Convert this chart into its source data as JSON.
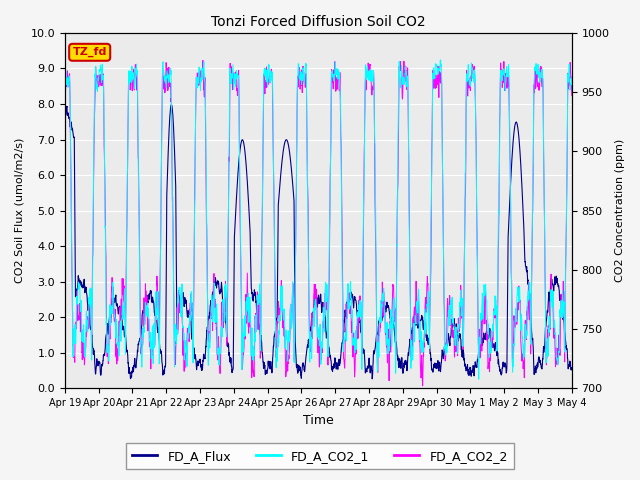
{
  "title": "Tonzi Forced Diffusion Soil CO2",
  "xlabel": "Time",
  "ylabel_left": "CO2 Soil Flux (umol/m2/s)",
  "ylabel_right": "CO2 Concentration (ppm)",
  "ylim_left": [
    0.0,
    10.0
  ],
  "ylim_right": [
    700,
    1000
  ],
  "annotation_text": "TZ_fd",
  "annotation_color": "#cc0000",
  "annotation_bg": "#ffdd00",
  "line_flux_color": "#00008B",
  "line_co2_1_color": "#00FFFF",
  "line_co2_2_color": "#FF00FF",
  "legend_labels": [
    "FD_A_Flux",
    "FD_A_CO2_1",
    "FD_A_CO2_2"
  ],
  "xtick_labels": [
    "Apr 19",
    "Apr 20",
    "Apr 21",
    "Apr 22",
    "Apr 23",
    "Apr 24",
    "Apr 25",
    "Apr 26",
    "Apr 27",
    "Apr 28",
    "Apr 29",
    "Apr 30",
    "May 1",
    "May 2",
    "May 3",
    "May 4"
  ],
  "background_color": "#ebebeb",
  "grid_color": "#ffffff",
  "fig_facecolor": "#f5f5f5"
}
